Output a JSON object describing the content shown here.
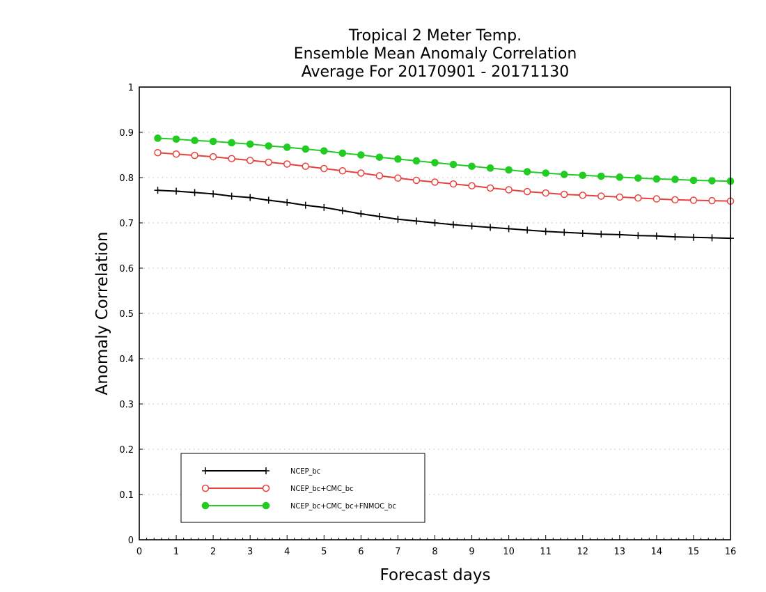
{
  "chart_data": {
    "type": "line",
    "title": "Tropical 2 Meter Temp.",
    "subtitle": [
      "Ensemble Mean Anomaly Correlation",
      "Average For 20170901 - 20171130"
    ],
    "xlabel": "Forecast days",
    "ylabel": "Anomaly Correlation",
    "xlim": [
      0,
      16
    ],
    "ylim": [
      0,
      1
    ],
    "x_ticks": [
      "0",
      "1",
      "2",
      "3",
      "4",
      "5",
      "6",
      "7",
      "8",
      "9",
      "10",
      "11",
      "12",
      "13",
      "14",
      "15",
      "16"
    ],
    "y_ticks": [
      "0",
      "0.1",
      "0.2",
      "0.3",
      "0.4",
      "0.5",
      "0.6",
      "0.7",
      "0.8",
      "0.9",
      "1"
    ],
    "grid": "horizontal dotted",
    "legend_position": "bottom-left",
    "x": [
      0.5,
      1,
      1.5,
      2,
      2.5,
      3,
      3.5,
      4,
      4.5,
      5,
      5.5,
      6,
      6.5,
      7,
      7.5,
      8,
      8.5,
      9,
      9.5,
      10,
      10.5,
      11,
      11.5,
      12,
      12.5,
      13,
      13.5,
      14,
      14.5,
      15,
      15.5,
      16
    ],
    "series": [
      {
        "name": "NCEP_bc",
        "color": "#000000",
        "marker": "plus",
        "values": [
          0.772,
          0.77,
          0.767,
          0.764,
          0.759,
          0.756,
          0.75,
          0.745,
          0.739,
          0.734,
          0.727,
          0.72,
          0.714,
          0.708,
          0.704,
          0.7,
          0.696,
          0.693,
          0.69,
          0.687,
          0.684,
          0.681,
          0.679,
          0.677,
          0.675,
          0.674,
          0.672,
          0.671,
          0.669,
          0.668,
          0.667,
          0.666
        ]
      },
      {
        "name": "NCEP_bc+CMC_bc",
        "color": "#e8413c",
        "marker": "open-circle",
        "values": [
          0.855,
          0.852,
          0.849,
          0.846,
          0.842,
          0.838,
          0.834,
          0.83,
          0.825,
          0.82,
          0.815,
          0.81,
          0.804,
          0.799,
          0.794,
          0.79,
          0.786,
          0.782,
          0.777,
          0.773,
          0.769,
          0.766,
          0.763,
          0.761,
          0.759,
          0.757,
          0.755,
          0.753,
          0.751,
          0.75,
          0.749,
          0.748
        ]
      },
      {
        "name": "NCEP_bc+CMC_bc+FNMOC_bc",
        "color": "#22cc22",
        "marker": "filled-circle",
        "values": [
          0.887,
          0.885,
          0.882,
          0.88,
          0.877,
          0.874,
          0.87,
          0.867,
          0.863,
          0.859,
          0.854,
          0.85,
          0.845,
          0.841,
          0.837,
          0.833,
          0.829,
          0.825,
          0.821,
          0.817,
          0.813,
          0.81,
          0.807,
          0.805,
          0.803,
          0.801,
          0.799,
          0.797,
          0.796,
          0.794,
          0.793,
          0.792
        ]
      }
    ]
  }
}
